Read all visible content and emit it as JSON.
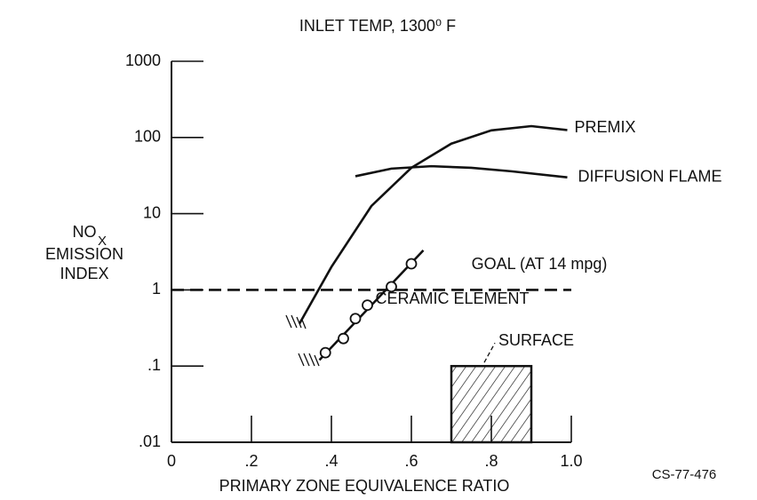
{
  "chart_data": {
    "type": "line",
    "title": "INLET TEMP, 1300⁰ F",
    "x_label": "PRIMARY ZONE EQUIVALENCE RATIO",
    "y_label": {
      "chem": "NO",
      "sub": "X",
      "line2": "EMISSION",
      "line3": "INDEX"
    },
    "figure_code": "CS-77-476",
    "log_y": true,
    "xlim": [
      0,
      1.0
    ],
    "ylim": [
      0.01,
      1000
    ],
    "xticks": [
      0,
      {
        "value": 0.2,
        "label": ".2"
      },
      {
        "value": 0.4,
        "label": ".4"
      },
      {
        "value": 0.6,
        "label": ".6"
      },
      {
        "value": 0.8,
        "label": ".8"
      },
      {
        "value": 1.0,
        "label": "1.0"
      }
    ],
    "yticks": [
      {
        "value": 0.01,
        "label": ".01"
      },
      {
        "value": 0.1,
        "label": ".1"
      },
      1,
      10,
      100,
      1000
    ],
    "series": [
      {
        "name": "PREMIX",
        "color": "#111111",
        "x": [
          0.32,
          0.4,
          0.5,
          0.6,
          0.7,
          0.8,
          0.9,
          0.99
        ],
        "values": [
          0.36,
          2,
          12.6,
          40,
          83,
          124,
          141,
          125
        ]
      },
      {
        "name": "DIFFUSION FLAME",
        "color": "#111111",
        "x": [
          0.46,
          0.55,
          0.65,
          0.75,
          0.85,
          0.99
        ],
        "values": [
          31,
          39,
          42,
          40,
          36,
          30
        ]
      },
      {
        "name": "GOAL (AT 14 mpg)",
        "color": "#111111",
        "dashed": true,
        "x": [
          0,
          1.0
        ],
        "values": [
          1,
          1
        ]
      },
      {
        "name": "CERAMIC ELEMENT",
        "color": "#111111",
        "x": [
          0.37,
          0.63
        ],
        "values": [
          0.12,
          3.3
        ],
        "markers": {
          "x": [
            0.385,
            0.43,
            0.46,
            0.49,
            0.55,
            0.6
          ],
          "values": [
            0.15,
            0.23,
            0.42,
            0.63,
            1.1,
            2.2
          ]
        }
      }
    ],
    "regions": [
      {
        "name": "SURFACE",
        "x": [
          0.7,
          0.9
        ],
        "value": 0.1,
        "hatched": true
      }
    ]
  }
}
